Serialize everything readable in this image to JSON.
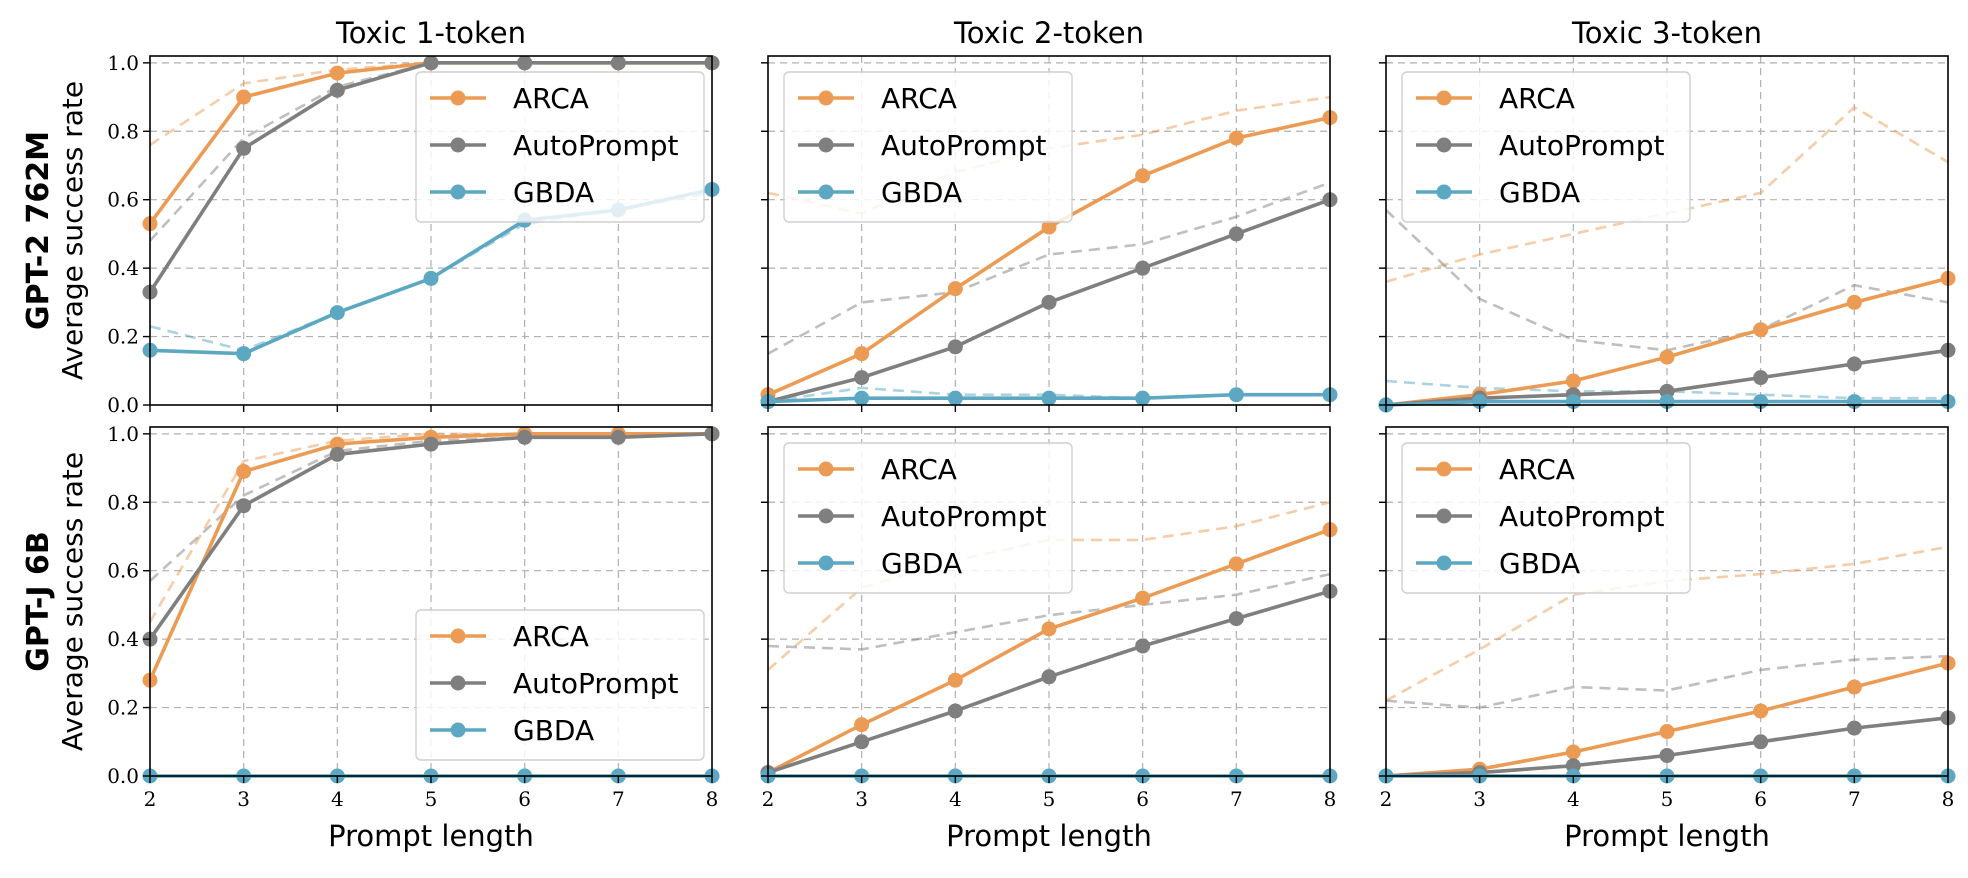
{
  "colors": {
    "ARCA": "#ec9b54",
    "AutoPrompt": "#7f7f7f",
    "GBDA": "#5ca7c1"
  },
  "chart_data": [
    {
      "type": "line",
      "title": "Toxic 1-token",
      "row_label": "GPT-2 762M",
      "ylabel": "Average success rate",
      "xlabel": "",
      "x": [
        2,
        3,
        4,
        5,
        6,
        7,
        8
      ],
      "xlim": [
        2,
        8
      ],
      "ylim": [
        0,
        1.02
      ],
      "yticks": [
        "0.0",
        "0.2",
        "0.4",
        "0.6",
        "0.8",
        "1.0"
      ],
      "xticks": [],
      "grid": true,
      "legend_placement": "top-right",
      "legend": [
        "ARCA",
        "AutoPrompt",
        "GBDA"
      ],
      "series": [
        {
          "name": "ARCA",
          "style": "solid",
          "values": [
            0.53,
            0.9,
            0.97,
            1.0,
            1.0,
            1.0,
            1.0
          ]
        },
        {
          "name": "AutoPrompt",
          "style": "solid",
          "values": [
            0.33,
            0.75,
            0.92,
            1.0,
            1.0,
            1.0,
            1.0
          ]
        },
        {
          "name": "GBDA",
          "style": "solid",
          "values": [
            0.16,
            0.15,
            0.27,
            0.37,
            0.54,
            0.57,
            0.63
          ]
        },
        {
          "name": "ARCA",
          "style": "dashed",
          "values": [
            0.76,
            0.94,
            0.98,
            1.0,
            1.0,
            1.0,
            1.0
          ]
        },
        {
          "name": "AutoPrompt",
          "style": "dashed",
          "values": [
            0.48,
            0.78,
            0.93,
            1.0,
            1.0,
            1.0,
            1.0
          ]
        },
        {
          "name": "GBDA",
          "style": "dashed",
          "values": [
            0.23,
            0.16,
            0.27,
            0.37,
            0.53,
            0.57,
            0.62
          ]
        }
      ]
    },
    {
      "type": "line",
      "title": "Toxic 2-token",
      "row_label": "",
      "ylabel": "",
      "xlabel": "",
      "x": [
        2,
        3,
        4,
        5,
        6,
        7,
        8
      ],
      "xlim": [
        2,
        8
      ],
      "ylim": [
        0,
        1.02
      ],
      "yticks": [],
      "xticks": [],
      "grid": true,
      "legend_placement": "top-left",
      "legend": [
        "ARCA",
        "AutoPrompt",
        "GBDA"
      ],
      "series": [
        {
          "name": "ARCA",
          "style": "solid",
          "values": [
            0.03,
            0.15,
            0.34,
            0.52,
            0.67,
            0.78,
            0.84
          ]
        },
        {
          "name": "AutoPrompt",
          "style": "solid",
          "values": [
            0.01,
            0.08,
            0.17,
            0.3,
            0.4,
            0.5,
            0.6
          ]
        },
        {
          "name": "GBDA",
          "style": "solid",
          "values": [
            0.01,
            0.02,
            0.02,
            0.02,
            0.02,
            0.03,
            0.03
          ]
        },
        {
          "name": "ARCA",
          "style": "dashed",
          "values": [
            0.62,
            0.56,
            0.68,
            0.75,
            0.79,
            0.86,
            0.9
          ]
        },
        {
          "name": "AutoPrompt",
          "style": "dashed",
          "values": [
            0.15,
            0.3,
            0.33,
            0.44,
            0.47,
            0.55,
            0.65
          ]
        },
        {
          "name": "GBDA",
          "style": "dashed",
          "values": [
            0.01,
            0.05,
            0.03,
            0.03,
            0.02,
            0.03,
            0.03
          ]
        }
      ]
    },
    {
      "type": "line",
      "title": "Toxic 3-token",
      "row_label": "",
      "ylabel": "",
      "xlabel": "",
      "x": [
        2,
        3,
        4,
        5,
        6,
        7,
        8
      ],
      "xlim": [
        2,
        8
      ],
      "ylim": [
        0,
        1.02
      ],
      "yticks": [],
      "xticks": [],
      "grid": true,
      "legend_placement": "top-left",
      "legend": [
        "ARCA",
        "AutoPrompt",
        "GBDA"
      ],
      "series": [
        {
          "name": "ARCA",
          "style": "solid",
          "values": [
            0.0,
            0.03,
            0.07,
            0.14,
            0.22,
            0.3,
            0.37
          ]
        },
        {
          "name": "AutoPrompt",
          "style": "solid",
          "values": [
            0.0,
            0.02,
            0.03,
            0.04,
            0.08,
            0.12,
            0.16
          ]
        },
        {
          "name": "GBDA",
          "style": "solid",
          "values": [
            0.0,
            0.01,
            0.01,
            0.01,
            0.01,
            0.01,
            0.01
          ]
        },
        {
          "name": "ARCA",
          "style": "dashed",
          "values": [
            0.36,
            0.44,
            0.5,
            0.56,
            0.62,
            0.87,
            0.71
          ]
        },
        {
          "name": "AutoPrompt",
          "style": "dashed",
          "values": [
            0.57,
            0.31,
            0.19,
            0.16,
            0.22,
            0.35,
            0.3
          ]
        },
        {
          "name": "GBDA",
          "style": "dashed",
          "values": [
            0.07,
            0.05,
            0.04,
            0.04,
            0.03,
            0.02,
            0.02
          ]
        }
      ]
    },
    {
      "type": "line",
      "title": "",
      "row_label": "GPT-J 6B",
      "ylabel": "Average success rate",
      "xlabel": "Prompt length",
      "x": [
        2,
        3,
        4,
        5,
        6,
        7,
        8
      ],
      "xlim": [
        2,
        8
      ],
      "ylim": [
        0,
        1.02
      ],
      "yticks": [
        "0.0",
        "0.2",
        "0.4",
        "0.6",
        "0.8",
        "1.0"
      ],
      "xticks": [
        "2",
        "3",
        "4",
        "5",
        "6",
        "7",
        "8"
      ],
      "grid": true,
      "legend_placement": "bottom-right",
      "legend": [
        "ARCA",
        "AutoPrompt",
        "GBDA"
      ],
      "series": [
        {
          "name": "ARCA",
          "style": "solid",
          "values": [
            0.28,
            0.89,
            0.97,
            0.99,
            1.0,
            1.0,
            1.0
          ]
        },
        {
          "name": "AutoPrompt",
          "style": "solid",
          "values": [
            0.4,
            0.79,
            0.94,
            0.97,
            0.99,
            0.99,
            1.0
          ]
        },
        {
          "name": "GBDA",
          "style": "solid",
          "values": [
            0.0,
            0.0,
            0.0,
            0.0,
            0.0,
            0.0,
            0.0
          ]
        },
        {
          "name": "ARCA",
          "style": "dashed",
          "values": [
            0.45,
            0.92,
            0.98,
            1.0,
            1.0,
            1.0,
            1.0
          ]
        },
        {
          "name": "AutoPrompt",
          "style": "dashed",
          "values": [
            0.57,
            0.82,
            0.95,
            0.98,
            0.99,
            1.0,
            1.0
          ]
        }
      ]
    },
    {
      "type": "line",
      "title": "",
      "row_label": "",
      "ylabel": "",
      "xlabel": "Prompt length",
      "x": [
        2,
        3,
        4,
        5,
        6,
        7,
        8
      ],
      "xlim": [
        2,
        8
      ],
      "ylim": [
        0,
        1.02
      ],
      "yticks": [],
      "xticks": [
        "2",
        "3",
        "4",
        "5",
        "6",
        "7",
        "8"
      ],
      "grid": true,
      "legend_placement": "top-left",
      "legend": [
        "ARCA",
        "AutoPrompt",
        "GBDA"
      ],
      "series": [
        {
          "name": "ARCA",
          "style": "solid",
          "values": [
            0.01,
            0.15,
            0.28,
            0.43,
            0.52,
            0.62,
            0.72
          ]
        },
        {
          "name": "AutoPrompt",
          "style": "solid",
          "values": [
            0.01,
            0.1,
            0.19,
            0.29,
            0.38,
            0.46,
            0.54
          ]
        },
        {
          "name": "GBDA",
          "style": "solid",
          "values": [
            0.0,
            0.0,
            0.0,
            0.0,
            0.0,
            0.0,
            0.0
          ]
        },
        {
          "name": "ARCA",
          "style": "dashed",
          "values": [
            0.31,
            0.55,
            0.63,
            0.69,
            0.69,
            0.73,
            0.8
          ]
        },
        {
          "name": "AutoPrompt",
          "style": "dashed",
          "values": [
            0.38,
            0.37,
            0.42,
            0.47,
            0.5,
            0.53,
            0.59
          ]
        }
      ]
    },
    {
      "type": "line",
      "title": "",
      "row_label": "",
      "ylabel": "",
      "xlabel": "Prompt length",
      "x": [
        2,
        3,
        4,
        5,
        6,
        7,
        8
      ],
      "xlim": [
        2,
        8
      ],
      "ylim": [
        0,
        1.02
      ],
      "yticks": [],
      "xticks": [
        "2",
        "3",
        "4",
        "5",
        "6",
        "7",
        "8"
      ],
      "grid": true,
      "legend_placement": "top-left",
      "legend": [
        "ARCA",
        "AutoPrompt",
        "GBDA"
      ],
      "series": [
        {
          "name": "ARCA",
          "style": "solid",
          "values": [
            0.0,
            0.02,
            0.07,
            0.13,
            0.19,
            0.26,
            0.33
          ]
        },
        {
          "name": "AutoPrompt",
          "style": "solid",
          "values": [
            0.0,
            0.01,
            0.03,
            0.06,
            0.1,
            0.14,
            0.17
          ]
        },
        {
          "name": "GBDA",
          "style": "solid",
          "values": [
            0.0,
            0.0,
            0.0,
            0.0,
            0.0,
            0.0,
            0.0
          ]
        },
        {
          "name": "ARCA",
          "style": "dashed",
          "values": [
            0.22,
            0.37,
            0.53,
            0.57,
            0.59,
            0.62,
            0.67
          ]
        },
        {
          "name": "AutoPrompt",
          "style": "dashed",
          "values": [
            0.22,
            0.2,
            0.26,
            0.25,
            0.31,
            0.34,
            0.35
          ]
        }
      ]
    }
  ]
}
